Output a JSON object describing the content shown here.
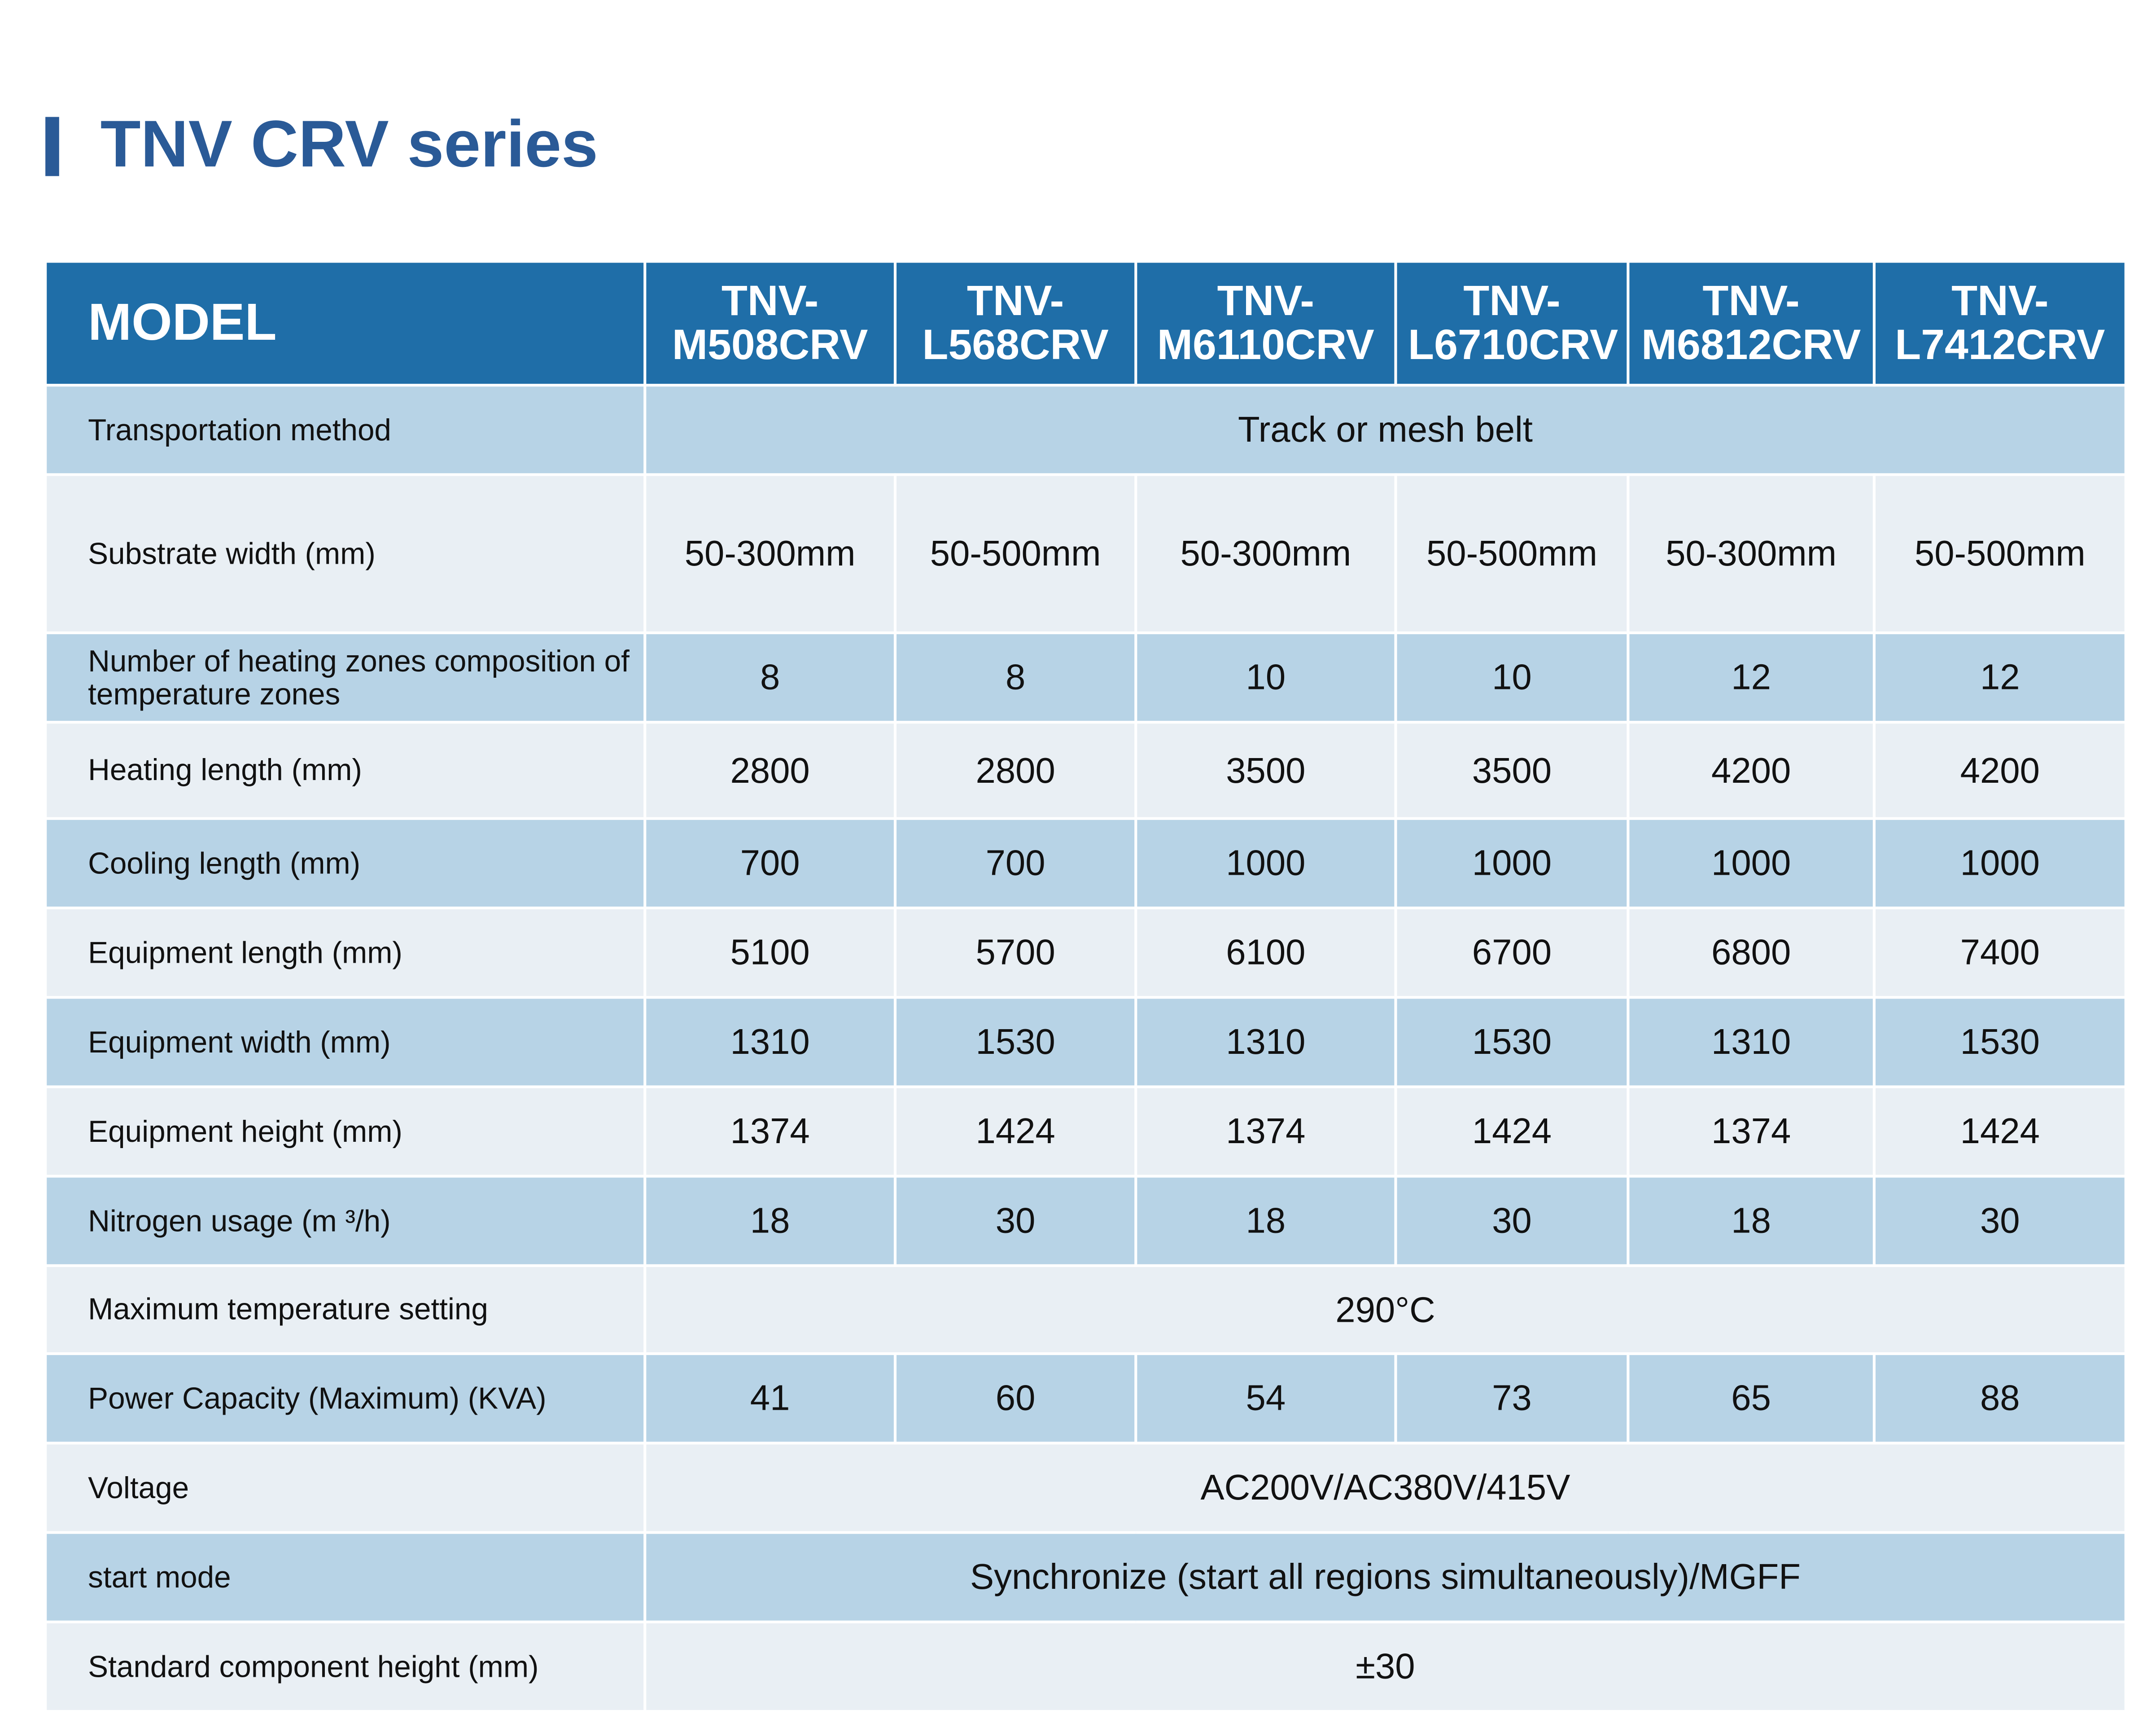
{
  "title": "TNV CRV series",
  "table": {
    "header": [
      "MODEL",
      "TNV-M508CRV",
      "TNV-L568CRV",
      "TNV-M6110CRV",
      "TNV-L6710CRV",
      "TNV-M6812CRV",
      "TNV-L7412CRV"
    ],
    "rows": [
      {
        "label": "Transportation method",
        "value": "Track or mesh belt"
      },
      {
        "label": "Substrate width (mm)",
        "values": [
          "50-300mm",
          "50-500mm",
          "50-300mm",
          "50-500mm",
          "50-300mm",
          "50-500mm"
        ]
      },
      {
        "label": "Number of heating zones composition of temperature zones",
        "values": [
          "8",
          "8",
          "10",
          "10",
          "12",
          "12"
        ]
      },
      {
        "label": "Heating length (mm)",
        "values": [
          "2800",
          "2800",
          "3500",
          "3500",
          "4200",
          "4200"
        ]
      },
      {
        "label": "Cooling length (mm)",
        "values": [
          "700",
          "700",
          "1000",
          "1000",
          "1000",
          "1000"
        ]
      },
      {
        "label": "Equipment length (mm)",
        "values": [
          "5100",
          "5700",
          "6100",
          "6700",
          "6800",
          "7400"
        ]
      },
      {
        "label": "Equipment width (mm)",
        "values": [
          "1310",
          "1530",
          "1310",
          "1530",
          "1310",
          "1530"
        ]
      },
      {
        "label": "Equipment height (mm)",
        "values": [
          "1374",
          "1424",
          "1374",
          "1424",
          "1374",
          "1424"
        ]
      },
      {
        "label": "Nitrogen usage (m ³/h)",
        "values": [
          "18",
          "30",
          "18",
          "30",
          "18",
          "30"
        ]
      },
      {
        "label": "Maximum temperature setting",
        "value": "290°C"
      },
      {
        "label": "Power Capacity (Maximum) (KVA)",
        "values": [
          "41",
          "60",
          "54",
          "73",
          "65",
          "88"
        ]
      },
      {
        "label": "Voltage",
        "value": "AC200V/AC380V/415V"
      },
      {
        "label": "start mode",
        "value": "Synchronize (start all regions simultaneously)/MGFF"
      },
      {
        "label": "Standard component height (mm)",
        "value": "±30"
      }
    ]
  }
}
